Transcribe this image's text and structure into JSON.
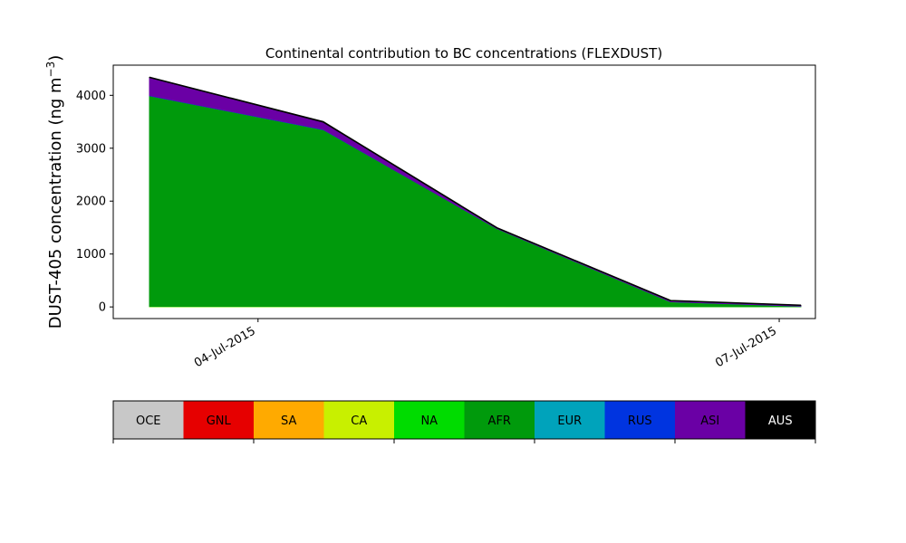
{
  "chart_data": {
    "type": "area",
    "stacked": true,
    "title": "Continental contribution to BC concentrations (FLEXDUST)",
    "ylabel": "DUST-405 concentration (ng m",
    "ylabel_sup": "−3",
    "ylabel_close": ")",
    "xlabel": "",
    "ylim": [
      -220,
      4570
    ],
    "xlim": [
      "2015-07-03T04:00",
      "2015-07-07T05:00"
    ],
    "x": [
      "2015-07-03T09:00",
      "2015-07-04T09:00",
      "2015-07-05T09:00",
      "2015-07-06T09:00",
      "2015-07-07T03:00"
    ],
    "xticks": [
      {
        "value": "2015-07-04T00:00",
        "label": "04-Jul-2015"
      },
      {
        "value": "2015-07-07T00:00",
        "label": "07-Jul-2015"
      }
    ],
    "yticks": [
      0,
      1000,
      2000,
      3000,
      4000
    ],
    "grid": false,
    "series": [
      {
        "name": "OCE",
        "color": "#c8c8c8",
        "values": [
          0,
          0,
          0,
          0,
          0
        ]
      },
      {
        "name": "GNL",
        "color": "#e60000",
        "values": [
          0,
          0,
          0,
          0,
          0
        ]
      },
      {
        "name": "SA",
        "color": "#ffaa00",
        "values": [
          0,
          0,
          0,
          0,
          0
        ]
      },
      {
        "name": "CA",
        "color": "#c8f000",
        "values": [
          5,
          5,
          5,
          3,
          2
        ]
      },
      {
        "name": "NA",
        "color": "#00dc00",
        "values": [
          5,
          5,
          5,
          3,
          2
        ]
      },
      {
        "name": "AFR",
        "color": "#009a0c",
        "values": [
          3980,
          3340,
          1470,
          90,
          10
        ]
      },
      {
        "name": "EUR",
        "color": "#00a3bb",
        "values": [
          0,
          0,
          0,
          0,
          0
        ]
      },
      {
        "name": "RUS",
        "color": "#0034e0",
        "values": [
          5,
          5,
          0,
          0,
          0
        ]
      },
      {
        "name": "ASI",
        "color": "#6a00a5",
        "values": [
          340,
          135,
          10,
          20,
          15
        ]
      },
      {
        "name": "AUS",
        "color": "#000000",
        "values": [
          5,
          10,
          5,
          5,
          5
        ]
      }
    ],
    "legend": "colorbar-bottom"
  }
}
